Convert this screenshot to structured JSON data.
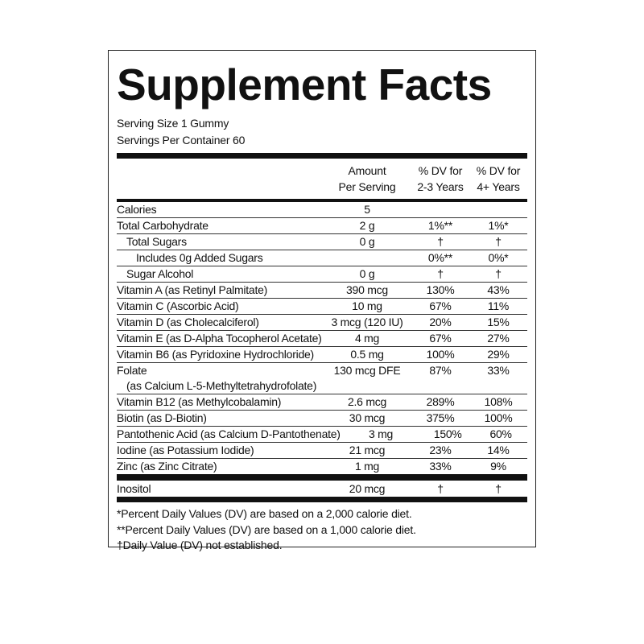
{
  "title": "Supplement Facts",
  "serving_size": "Serving Size 1 Gummy",
  "servings_per_container": "Servings Per Container 60",
  "headers": {
    "amount": [
      "Amount",
      "Per Serving"
    ],
    "dv_2_3": [
      "% DV for",
      "2-3 Years"
    ],
    "dv_4": [
      "% DV for",
      "4+ Years"
    ]
  },
  "rows": [
    {
      "name": "Calories",
      "amount": "5",
      "dv23": "",
      "dv4": ""
    },
    {
      "name": "Total Carbohydrate",
      "amount": "2 g",
      "dv23": "1%**",
      "dv4": "1%*"
    },
    {
      "name": "Total Sugars",
      "amount": "0 g",
      "dv23": "†",
      "dv4": "†"
    },
    {
      "name": "Includes 0g Added Sugars",
      "amount": "",
      "dv23": "0%**",
      "dv4": "0%*"
    },
    {
      "name": "Sugar Alcohol",
      "amount": "0 g",
      "dv23": "†",
      "dv4": "†"
    },
    {
      "name": "Vitamin A (as Retinyl Palmitate)",
      "amount": "390 mcg",
      "dv23": "130%",
      "dv4": "43%"
    },
    {
      "name": "Vitamin C (Ascorbic Acid)",
      "amount": "10 mg",
      "dv23": "67%",
      "dv4": "11%"
    },
    {
      "name": "Vitamin D (as Cholecalciferol)",
      "amount": "3 mcg (120 IU)",
      "dv23": "20%",
      "dv4": "15%"
    },
    {
      "name": "Vitamin E (as D-Alpha Tocopherol Acetate)",
      "amount": "4 mg",
      "dv23": "67%",
      "dv4": "27%"
    },
    {
      "name": "Vitamin B6 (as Pyridoxine Hydrochloride)",
      "amount": "0.5 mg",
      "dv23": "100%",
      "dv4": "29%"
    },
    {
      "name": "Folate",
      "name2": "(as Calcium L-5-Methyltetrahydrofolate)",
      "amount": "130 mcg DFE",
      "dv23": "87%",
      "dv4": "33%"
    },
    {
      "name": "Vitamin B12 (as Methylcobalamin)",
      "amount": "2.6 mcg",
      "dv23": "289%",
      "dv4": "108%"
    },
    {
      "name": "Biotin (as D-Biotin)",
      "amount": "30 mcg",
      "dv23": "375%",
      "dv4": "100%"
    },
    {
      "name": "Pantothenic Acid (as Calcium D-Pantothenate)",
      "amount": "3 mg",
      "dv23": "150%",
      "dv4": "60%"
    },
    {
      "name": "Iodine (as Potassium Iodide)",
      "amount": "21 mcg",
      "dv23": "23%",
      "dv4": "14%"
    },
    {
      "name": "Zinc (as Zinc Citrate)",
      "amount": "1 mg",
      "dv23": "33%",
      "dv4": "9%"
    }
  ],
  "other": {
    "name": "Inositol",
    "amount": "20 mcg",
    "dv23": "†",
    "dv4": "†"
  },
  "footnotes": [
    "*Percent Daily Values (DV) are based on a 2,000 calorie diet.",
    "**Percent Daily Values (DV) are based on a 1,000 calorie diet.",
    "†Daily Value (DV) not established."
  ]
}
